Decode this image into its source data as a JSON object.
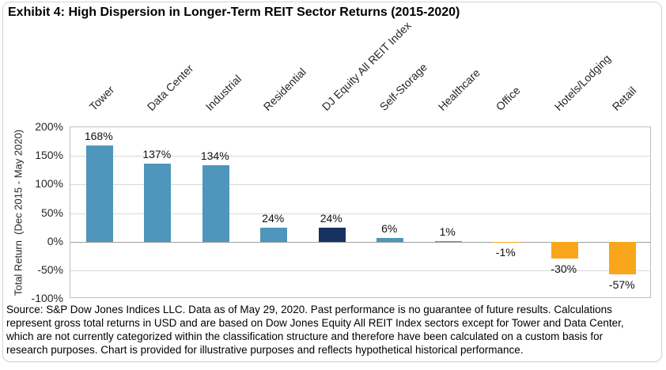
{
  "chart_data": {
    "type": "bar",
    "title": "Exhibit 4: High Dispersion in Longer-Term REIT Sector Returns (2015-2020)",
    "ylabel": "Total Return  (Dec 2015 - May 2020)",
    "xlabel": "",
    "ylim": [
      -100,
      200
    ],
    "yticks": [
      200,
      150,
      100,
      50,
      0,
      -50,
      -100
    ],
    "ytick_labels": [
      "200%",
      "150%",
      "100%",
      "50%",
      "0%",
      "-50%",
      "-100%"
    ],
    "grid": true,
    "legend": "none",
    "categories": [
      "Tower",
      "Data Center",
      "Industrial",
      "Residential",
      "DJ Equity All REIT Index",
      "Self-Storage",
      "Healthcare",
      "Office",
      "Hotels/Lodging",
      "Retail"
    ],
    "values": [
      168,
      137,
      134,
      24,
      24,
      6,
      1,
      -1,
      -30,
      -57
    ],
    "value_labels": [
      "168%",
      "137%",
      "134%",
      "24%",
      "24%",
      "6%",
      "1%",
      "-1%",
      "-30%",
      "-57%"
    ],
    "bar_colors": [
      "#4E96BC",
      "#4E96BC",
      "#4E96BC",
      "#4E96BC",
      "#16325F",
      "#4E96BC",
      "#4E96BC",
      "#F9A61A",
      "#F9A61A",
      "#F9A61A"
    ],
    "colors": {
      "sector_blue": "#4E96BC",
      "index_navy": "#16325F",
      "negative_orange": "#F9A61A",
      "gridline": "#D9D9D9",
      "zero_line": "#9E9E9E",
      "plot_border": "#BFBFBF"
    }
  },
  "source_note": {
    "lines": [
      "Source: S&P Dow Jones Indices LLC. Data as of May 29, 2020. Past performance is no guarantee of future results. Calculations",
      "represent gross total returns in USD and are based on Dow Jones Equity All REIT Index sectors except for Tower and Data Center,",
      "which are not currently categorized within the classification structure and therefore have been calculated on a custom basis for",
      "research purposes. Chart is provided for illustrative purposes and reflects hypothetical historical performance."
    ]
  }
}
